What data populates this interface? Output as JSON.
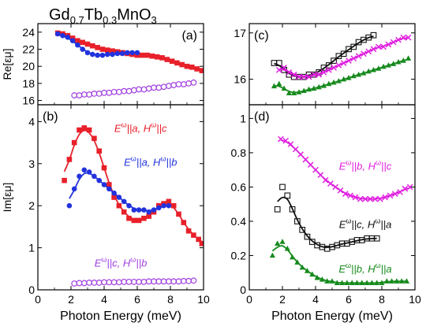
{
  "figure_title": {
    "base1": "Gd",
    "sub1": "0.7",
    "base2": "Tb",
    "sub2": "0.3",
    "base3": "MnO",
    "sub3": "3"
  },
  "colors": {
    "red": "#e8202a",
    "blue": "#2233dd",
    "purple": "#a040e0",
    "magenta": "#e020e0",
    "black": "#111111",
    "green": "#178a1e"
  },
  "chart_data": [
    {
      "id": "a",
      "type": "scatter",
      "panel_label": "(a)",
      "ylabel": "Re[εμ]",
      "xlim": [
        0,
        10
      ],
      "ylim": [
        15.5,
        25
      ],
      "yticks": [
        16,
        18,
        20,
        22,
        24
      ],
      "xticks": [
        0,
        2,
        4,
        6,
        8,
        10
      ],
      "show_x_ticklabels": false,
      "series": [
        {
          "key": "a_red",
          "color": "#e8202a",
          "marker": "square",
          "fit": true,
          "x": [
            1.2,
            1.5,
            1.8,
            2.1,
            2.4,
            2.7,
            3.0,
            3.3,
            3.6,
            3.9,
            4.2,
            4.5,
            4.8,
            5.1,
            5.4,
            5.7,
            6.0,
            6.3,
            6.6,
            6.9,
            7.2,
            7.5,
            7.8,
            8.1,
            8.4,
            8.7,
            9.0,
            9.3,
            9.6,
            9.9
          ],
          "y": [
            23.9,
            23.8,
            23.6,
            23.3,
            23.0,
            22.8,
            22.6,
            22.4,
            22.2,
            22.0,
            21.9,
            21.8,
            21.7,
            21.6,
            21.5,
            21.4,
            21.3,
            21.3,
            21.3,
            21.2,
            21.1,
            21.0,
            20.8,
            20.6,
            20.4,
            20.2,
            20.0,
            19.9,
            19.7,
            19.5
          ]
        },
        {
          "key": "a_blue",
          "color": "#2233dd",
          "marker": "circle",
          "fit": true,
          "x": [
            1.2,
            1.5,
            1.8,
            2.1,
            2.4,
            2.7,
            3.0,
            3.3,
            3.6,
            3.9,
            4.2,
            4.5,
            4.8,
            5.1,
            5.4,
            5.7,
            6.0
          ],
          "y": [
            23.8,
            23.6,
            23.4,
            23.0,
            22.5,
            22.0,
            21.6,
            21.4,
            21.3,
            21.3,
            21.4,
            21.4,
            21.5,
            21.5,
            21.6,
            21.6,
            21.6
          ]
        },
        {
          "key": "a_purple",
          "color": "#a040e0",
          "marker": "open-circle",
          "fit": false,
          "x": [
            2.2,
            2.5,
            2.8,
            3.1,
            3.4,
            3.7,
            4.0,
            4.3,
            4.6,
            4.9,
            5.2,
            5.5,
            5.8,
            6.1,
            6.4,
            6.7,
            7.0,
            7.3,
            7.6,
            7.9,
            8.2,
            8.5,
            8.8,
            9.1,
            9.4
          ],
          "y": [
            16.6,
            16.6,
            16.7,
            16.7,
            16.8,
            16.8,
            16.9,
            16.9,
            17.0,
            17.0,
            17.1,
            17.1,
            17.2,
            17.3,
            17.3,
            17.4,
            17.5,
            17.5,
            17.6,
            17.7,
            17.8,
            17.9,
            17.9,
            18.0,
            18.1
          ]
        }
      ]
    },
    {
      "id": "b",
      "type": "scatter",
      "panel_label": "(b)",
      "ylabel": "Im[εμ]",
      "xlabel": "Photon Energy (meV)",
      "xlim": [
        0,
        10
      ],
      "ylim": [
        0,
        4.4
      ],
      "yticks": [
        0,
        1,
        2,
        3,
        4
      ],
      "xticks": [
        0,
        2,
        4,
        6,
        8,
        10
      ],
      "show_x_ticklabels": true,
      "series": [
        {
          "key": "b_red",
          "color": "#e8202a",
          "marker": "square",
          "fit": true,
          "x": [
            1.6,
            1.9,
            2.2,
            2.5,
            2.8,
            3.1,
            3.4,
            3.7,
            4.0,
            4.3,
            4.6,
            4.9,
            5.2,
            5.5,
            5.8,
            6.1,
            6.4,
            6.7,
            7.0,
            7.3,
            7.6,
            7.9,
            8.2,
            8.5,
            8.8,
            9.1,
            9.4,
            9.7,
            9.9
          ],
          "y": [
            2.6,
            3.1,
            3.5,
            3.8,
            3.85,
            3.8,
            3.6,
            3.3,
            2.9,
            2.5,
            2.2,
            2.0,
            1.85,
            1.7,
            1.65,
            1.65,
            1.7,
            1.75,
            1.85,
            2.0,
            2.05,
            2.1,
            2.0,
            1.8,
            1.6,
            1.4,
            1.3,
            1.2,
            1.1
          ]
        },
        {
          "key": "b_blue",
          "color": "#2233dd",
          "marker": "circle",
          "fit": true,
          "x": [
            1.9,
            2.2,
            2.5,
            2.8,
            3.1,
            3.4,
            3.7,
            4.0,
            4.3,
            4.6,
            4.9,
            5.2,
            5.5,
            5.8,
            6.1,
            6.4,
            6.7,
            7.0,
            7.3,
            7.6,
            7.9
          ],
          "y": [
            2.0,
            2.4,
            2.7,
            2.85,
            2.8,
            2.7,
            2.6,
            2.5,
            2.4,
            2.3,
            2.2,
            2.1,
            2.0,
            1.9,
            1.9,
            1.9,
            1.85,
            1.9,
            1.95,
            2.0,
            2.0
          ]
        },
        {
          "key": "b_purple",
          "color": "#a040e0",
          "marker": "open-circle",
          "fit": false,
          "x": [
            2.2,
            2.5,
            2.8,
            3.1,
            3.4,
            3.7,
            4.0,
            4.3,
            4.6,
            4.9,
            5.2,
            5.5,
            5.8,
            6.1,
            6.4,
            6.7,
            7.0,
            7.3,
            7.6,
            7.9,
            8.2,
            8.5,
            8.8,
            9.1,
            9.4
          ],
          "y": [
            0.15,
            0.16,
            0.16,
            0.17,
            0.17,
            0.17,
            0.18,
            0.18,
            0.18,
            0.18,
            0.19,
            0.19,
            0.19,
            0.19,
            0.19,
            0.2,
            0.2,
            0.2,
            0.2,
            0.2,
            0.2,
            0.2,
            0.21,
            0.21,
            0.22
          ]
        }
      ],
      "labels": [
        {
          "key": "b_red",
          "text": "E^ω||a, H^ω||c",
          "anchor": [
            6.2,
            3.75
          ],
          "color": "#e8202a"
        },
        {
          "key": "b_blue",
          "text": "E^ω||a, H^ω||b",
          "anchor": [
            6.8,
            2.95
          ],
          "color": "#2233dd"
        },
        {
          "key": "b_purple",
          "text": "E^ω||c, H^ω||b",
          "anchor": [
            5.0,
            0.55
          ],
          "color": "#a040e0"
        }
      ]
    },
    {
      "id": "c",
      "type": "scatter",
      "panel_label": "(c)",
      "ylabel": "",
      "xlim": [
        0,
        10
      ],
      "ylim": [
        15.45,
        17.2
      ],
      "yticks": [
        16,
        17
      ],
      "xticks": [
        0,
        2,
        4,
        6,
        8,
        10
      ],
      "show_x_ticklabels": false,
      "series": [
        {
          "key": "c_black",
          "color": "#111111",
          "marker": "open-square",
          "fit": true,
          "x": [
            1.5,
            1.8,
            2.1,
            2.4,
            2.7,
            3.0,
            3.3,
            3.6,
            3.9,
            4.2,
            4.5,
            4.8,
            5.1,
            5.4,
            5.7,
            6.0,
            6.3,
            6.6,
            6.9,
            7.2,
            7.5
          ],
          "y": [
            16.35,
            16.35,
            16.2,
            16.1,
            16.05,
            16.05,
            16.05,
            16.1,
            16.1,
            16.15,
            16.25,
            16.3,
            16.4,
            16.5,
            16.55,
            16.65,
            16.7,
            16.8,
            16.85,
            16.9,
            16.95
          ]
        },
        {
          "key": "c_magenta",
          "color": "#e020e0",
          "marker": "x",
          "fit": true,
          "x": [
            1.8,
            2.1,
            2.4,
            2.7,
            3.0,
            3.3,
            3.6,
            3.9,
            4.2,
            4.5,
            4.8,
            5.1,
            5.4,
            5.7,
            6.0,
            6.3,
            6.6,
            6.9,
            7.2,
            7.5,
            7.8,
            8.1,
            8.4,
            8.7,
            9.0,
            9.3,
            9.6
          ],
          "y": [
            16.2,
            16.25,
            16.15,
            16.1,
            16.05,
            16.05,
            16.05,
            16.1,
            16.1,
            16.15,
            16.2,
            16.25,
            16.3,
            16.35,
            16.4,
            16.45,
            16.5,
            16.55,
            16.6,
            16.65,
            16.7,
            16.7,
            16.75,
            16.8,
            16.85,
            16.9,
            16.9
          ]
        },
        {
          "key": "c_green",
          "color": "#178a1e",
          "marker": "triangle",
          "fit": true,
          "x": [
            1.5,
            1.8,
            2.1,
            2.4,
            2.7,
            3.0,
            3.3,
            3.6,
            3.9,
            4.2,
            4.5,
            4.8,
            5.1,
            5.4,
            5.7,
            6.0,
            6.3,
            6.6,
            6.9,
            7.2,
            7.5,
            7.8,
            8.1,
            8.4,
            8.7,
            9.0,
            9.3,
            9.6
          ],
          "y": [
            15.85,
            15.9,
            15.8,
            15.7,
            15.7,
            15.72,
            15.75,
            15.78,
            15.8,
            15.83,
            15.86,
            15.9,
            15.93,
            15.96,
            16.0,
            16.03,
            16.07,
            16.1,
            16.13,
            16.17,
            16.2,
            16.23,
            16.27,
            16.3,
            16.33,
            16.37,
            16.4,
            16.45
          ]
        }
      ]
    },
    {
      "id": "d",
      "type": "scatter",
      "panel_label": "(d)",
      "ylabel": "",
      "xlim": [
        0,
        10
      ],
      "ylim": [
        0,
        1.08
      ],
      "yticks": [
        0,
        0.2,
        0.4,
        0.6,
        0.8,
        1
      ],
      "xticks": [
        0,
        2,
        4,
        6,
        8,
        10
      ],
      "show_x_ticklabels": true,
      "xlabel": "Photon Energy (meV)",
      "series": [
        {
          "key": "d_magenta",
          "color": "#e020e0",
          "marker": "x",
          "fit": true,
          "x": [
            1.9,
            2.2,
            2.5,
            2.8,
            3.1,
            3.4,
            3.7,
            4.0,
            4.3,
            4.6,
            4.9,
            5.2,
            5.5,
            5.8,
            6.1,
            6.4,
            6.7,
            7.0,
            7.3,
            7.6,
            7.9,
            8.2,
            8.5,
            8.8,
            9.1,
            9.4,
            9.7
          ],
          "y": [
            0.88,
            0.87,
            0.85,
            0.82,
            0.79,
            0.76,
            0.73,
            0.7,
            0.67,
            0.64,
            0.62,
            0.6,
            0.58,
            0.56,
            0.55,
            0.54,
            0.53,
            0.53,
            0.53,
            0.53,
            0.53,
            0.54,
            0.55,
            0.56,
            0.57,
            0.59,
            0.6
          ]
        },
        {
          "key": "d_black",
          "color": "#111111",
          "marker": "open-square",
          "fit": true,
          "x": [
            1.7,
            2.0,
            2.3,
            2.6,
            2.9,
            3.2,
            3.5,
            3.8,
            4.1,
            4.4,
            4.7,
            5.0,
            5.3,
            5.6,
            5.9,
            6.2,
            6.5,
            6.8,
            7.1,
            7.4,
            7.7
          ],
          "y": [
            0.47,
            0.6,
            0.55,
            0.47,
            0.4,
            0.35,
            0.31,
            0.28,
            0.26,
            0.25,
            0.24,
            0.25,
            0.26,
            0.27,
            0.27,
            0.28,
            0.29,
            0.29,
            0.3,
            0.3,
            0.3
          ]
        },
        {
          "key": "d_green",
          "color": "#178a1e",
          "marker": "triangle",
          "fit": true,
          "x": [
            1.4,
            1.7,
            2.0,
            2.3,
            2.6,
            2.9,
            3.2,
            3.5,
            3.8,
            4.1,
            4.4,
            4.7,
            5.0,
            5.3,
            5.6,
            5.9,
            6.2,
            6.5,
            6.8,
            7.1,
            7.4,
            7.7,
            8.0,
            8.3,
            8.6,
            8.9,
            9.2,
            9.5
          ],
          "y": [
            0.2,
            0.27,
            0.28,
            0.24,
            0.19,
            0.16,
            0.13,
            0.11,
            0.09,
            0.07,
            0.06,
            0.05,
            0.05,
            0.04,
            0.04,
            0.04,
            0.04,
            0.04,
            0.04,
            0.04,
            0.04,
            0.04,
            0.04,
            0.05,
            0.05,
            0.05,
            0.05,
            0.05
          ]
        }
      ],
      "labels": [
        {
          "key": "d_magenta",
          "text": "E^ω||b, H^ω||c",
          "anchor": [
            7.0,
            0.7
          ],
          "color": "#e020e0"
        },
        {
          "key": "d_black",
          "text": "E^ω||c, H^ω||a",
          "anchor": [
            7.0,
            0.36
          ],
          "color": "#111111"
        },
        {
          "key": "d_green",
          "text": "E^ω||b, H^ω||a",
          "anchor": [
            7.0,
            0.1
          ],
          "color": "#178a1e"
        }
      ]
    }
  ]
}
